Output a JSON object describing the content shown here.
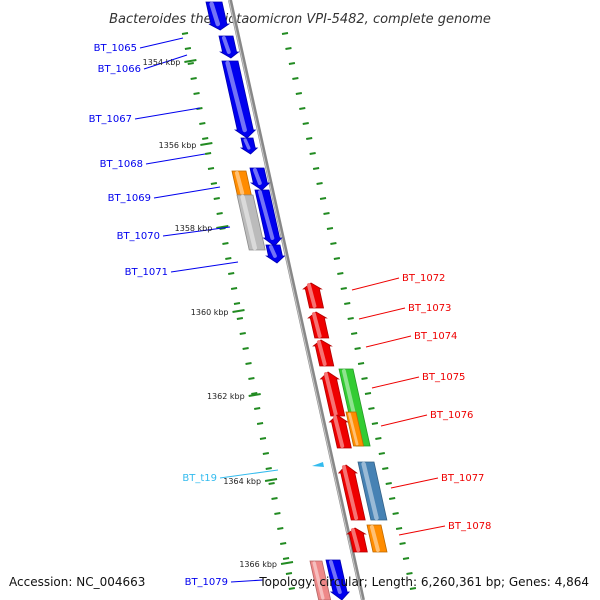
{
  "title": "Bacteroides thetaiotaomicron VPI-5482, complete genome",
  "footer": {
    "accession": "Accession: NC_004663",
    "topology": "Topology: circular; Length: 6,260,361 bp; Genes: 4,864"
  },
  "colors": {
    "forward": "#0000ee",
    "reverse": "#ee0000",
    "orange": "#ff8c00",
    "green": "#33cc33",
    "steel": "#4682b4",
    "gray": "#bbbbbb",
    "pink": "#ee8888",
    "trna": "#33bbee",
    "backbone": "#888888",
    "tick": "#228b22"
  },
  "kbp_markers": [
    "1354 kbp",
    "1356 kbp",
    "1358 kbp",
    "1360 kbp",
    "1362 kbp",
    "1364 kbp",
    "1366 kbp"
  ],
  "genes_forward": [
    {
      "label": "BT_1065",
      "color": "#0000ee"
    },
    {
      "label": "BT_1066",
      "color": "#0000ee"
    },
    {
      "label": "BT_1067",
      "color": "#0000ee"
    },
    {
      "label": "BT_1068",
      "color": "#0000ee"
    },
    {
      "label": "BT_1069",
      "color": "#0000ee"
    },
    {
      "label": "BT_1070",
      "color": "#0000ee"
    },
    {
      "label": "BT_1071",
      "color": "#0000ee"
    },
    {
      "label": "BT_t19",
      "color": "#33bbee"
    },
    {
      "label": "BT_1079",
      "color": "#0000ee"
    }
  ],
  "genes_reverse": [
    {
      "label": "BT_1072",
      "color": "#ee0000"
    },
    {
      "label": "BT_1073",
      "color": "#ee0000"
    },
    {
      "label": "BT_1074",
      "color": "#ee0000"
    },
    {
      "label": "BT_1075",
      "color": "#ee0000"
    },
    {
      "label": "BT_1076",
      "color": "#ee0000"
    },
    {
      "label": "BT_1077",
      "color": "#ee0000"
    },
    {
      "label": "BT_1078",
      "color": "#ee0000"
    }
  ]
}
